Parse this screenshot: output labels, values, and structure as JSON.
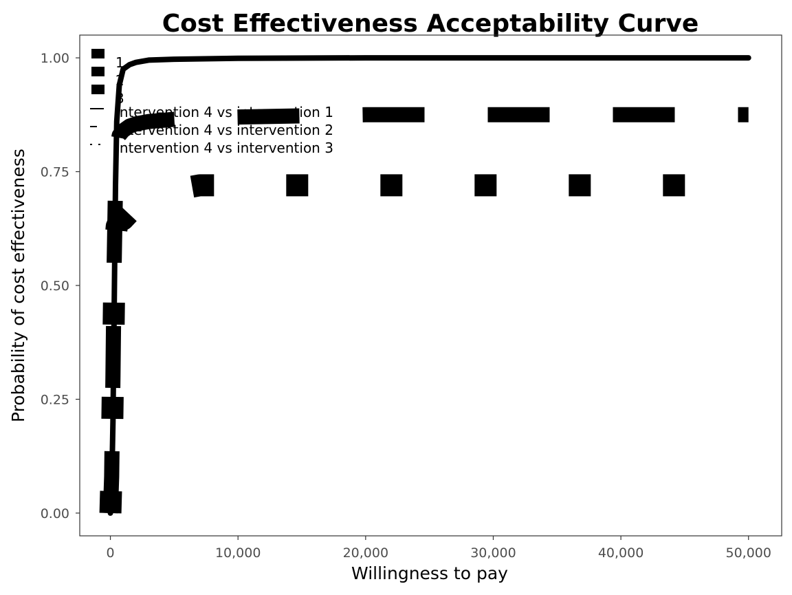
{
  "chart_data": {
    "type": "line",
    "title": "Cost Effectiveness Acceptability Curve",
    "xlabel": "Willingness to pay",
    "ylabel": "Probability of cost effectiveness",
    "xlim": [
      -2400,
      52600
    ],
    "ylim": [
      -0.05,
      1.05
    ],
    "x_ticks": [
      0,
      10000,
      20000,
      30000,
      40000,
      50000
    ],
    "x_tick_labels": [
      "0",
      "10,000",
      "20,000",
      "30,000",
      "40,000",
      "50,000"
    ],
    "y_ticks": [
      0,
      0.25,
      0.5,
      0.75,
      1.0
    ],
    "y_tick_labels": [
      "0.00",
      "0.25",
      "0.50",
      "0.75",
      "1.00"
    ],
    "grid": false,
    "legend_placement": "top-left",
    "legend_groups": [
      [
        "1",
        "2",
        "3"
      ],
      [
        "Intervention 4 vs intervention 1",
        "Intervention 4 vs intervention 2",
        "Intervention 4 vs intervention 3"
      ]
    ],
    "series": [
      {
        "name": "Intervention 4 vs intervention 1",
        "linetype": "solid",
        "x": [
          0,
          100,
          200,
          300,
          400,
          500,
          700,
          1000,
          1500,
          2000,
          3000,
          5000,
          10000,
          20000,
          30000,
          40000,
          50000
        ],
        "y": [
          0.0,
          0.05,
          0.2,
          0.45,
          0.72,
          0.86,
          0.94,
          0.975,
          0.985,
          0.99,
          0.995,
          0.997,
          0.999,
          1.0,
          1.0,
          1.0,
          1.0
        ]
      },
      {
        "name": "Intervention 4 vs intervention 2",
        "linetype": "longdash",
        "x": [
          0,
          100,
          200,
          300,
          400,
          500,
          700,
          1000,
          1500,
          2000,
          3000,
          5000,
          7000,
          10000,
          20000,
          30000,
          40000,
          50000
        ],
        "y": [
          0.0,
          0.08,
          0.3,
          0.55,
          0.72,
          0.8,
          0.83,
          0.84,
          0.85,
          0.855,
          0.86,
          0.865,
          0.868,
          0.87,
          0.875,
          0.875,
          0.875,
          0.875
        ]
      },
      {
        "name": "Intervention 4 vs intervention 3",
        "linetype": "dotted",
        "x": [
          0,
          100,
          200,
          300,
          400,
          500,
          700,
          1000,
          1500,
          2000,
          3000,
          5000,
          7000,
          10000,
          20000,
          30000,
          40000,
          50000
        ],
        "y": [
          0.0,
          0.1,
          0.3,
          0.5,
          0.6,
          0.63,
          0.64,
          0.645,
          0.66,
          0.68,
          0.7,
          0.71,
          0.72,
          0.72,
          0.72,
          0.72,
          0.72,
          0.72
        ]
      }
    ]
  }
}
